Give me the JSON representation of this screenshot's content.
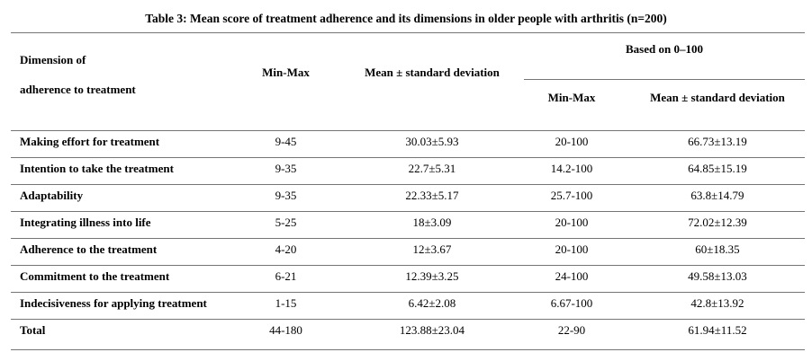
{
  "title": "Table 3: Mean score of treatment adherence and its dimensions in older people with arthritis (n=200)",
  "header": {
    "dimension_line1": "Dimension of",
    "dimension_line2": "adherence to treatment",
    "min_max": "Min-Max",
    "mean_sd": "Mean ± standard deviation",
    "based_on": "Based on 0–100",
    "based_min_max": "Min-Max",
    "based_mean_sd": "Mean ± standard deviation"
  },
  "rows": [
    {
      "label": "Making effort for treatment",
      "min_max": "9-45",
      "mean_sd": "30.03±5.93",
      "based_min_max": "20-100",
      "based_mean_sd": "66.73±13.19"
    },
    {
      "label": "Intention to take the treatment",
      "min_max": "9-35",
      "mean_sd": "22.7±5.31",
      "based_min_max": "14.2-100",
      "based_mean_sd": "64.85±15.19"
    },
    {
      "label": "Adaptability",
      "min_max": "9-35",
      "mean_sd": "22.33±5.17",
      "based_min_max": "25.7-100",
      "based_mean_sd": "63.8±14.79"
    },
    {
      "label": "Integrating illness into life",
      "min_max": "5-25",
      "mean_sd": "18±3.09",
      "based_min_max": "20-100",
      "based_mean_sd": "72.02±12.39"
    },
    {
      "label": "Adherence to the treatment",
      "min_max": "4-20",
      "mean_sd": "12±3.67",
      "based_min_max": "20-100",
      "based_mean_sd": "60±18.35"
    },
    {
      "label": "Commitment to the treatment",
      "min_max": "6-21",
      "mean_sd": "12.39±3.25",
      "based_min_max": "24-100",
      "based_mean_sd": "49.58±13.03"
    },
    {
      "label": "Indecisiveness for applying treatment",
      "min_max": "1-15",
      "mean_sd": "6.42±2.08",
      "based_min_max": "6.67-100",
      "based_mean_sd": "42.8±13.92"
    },
    {
      "label": "Total",
      "min_max": "44-180",
      "mean_sd": "123.88±23.04",
      "based_min_max": "22-90",
      "based_mean_sd": "61.94±11.52"
    }
  ],
  "colors": {
    "background": "#ffffff",
    "text": "#000000",
    "rule": "#757575"
  }
}
